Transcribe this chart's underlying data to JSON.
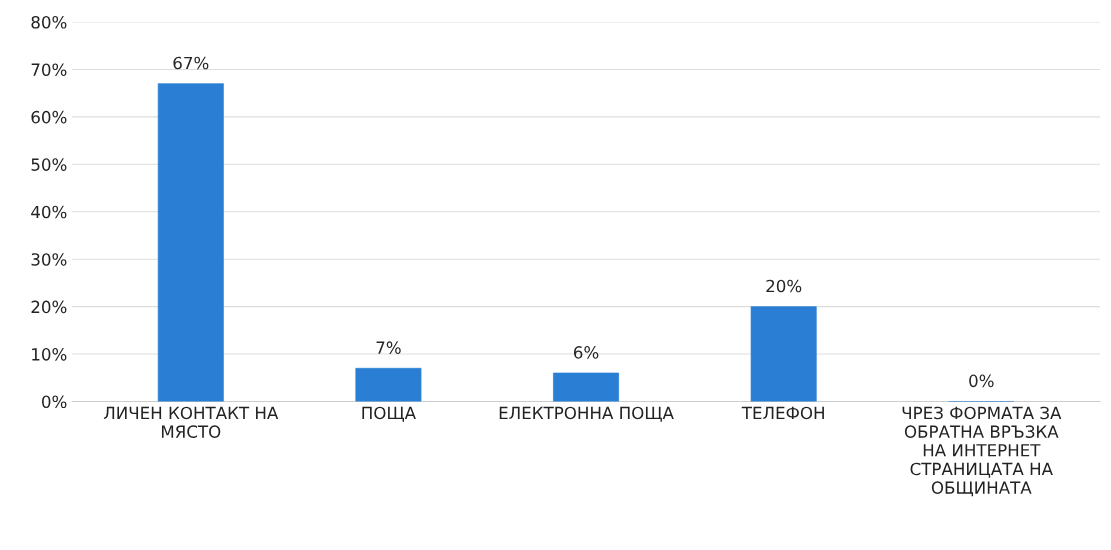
{
  "chart_data": {
    "type": "bar",
    "categories": [
      "ЛИЧЕН КОНТАКТ НА МЯСТО",
      "ПОЩА",
      "ЕЛЕКТРОННА ПОЩА",
      "ТЕЛЕФОН",
      "ЧРЕЗ ФОРМАТА ЗА ОБРАТНА ВРЪЗКА НА ИНТЕРНЕТ СТРАНИЦАТА НА ОБЩИНАТА"
    ],
    "values": [
      67,
      7,
      6,
      20,
      0
    ],
    "value_labels": [
      "67%",
      "7%",
      "6%",
      "20%",
      "0%"
    ],
    "color": "#2a7fd4",
    "ylim": [
      0,
      80
    ],
    "yticks": [
      {
        "value": 0,
        "label": "0%"
      },
      {
        "value": 10,
        "label": "10%"
      },
      {
        "value": 20,
        "label": "20%"
      },
      {
        "value": 30,
        "label": "30%"
      },
      {
        "value": 40,
        "label": "40%"
      },
      {
        "value": 50,
        "label": "50%"
      },
      {
        "value": 60,
        "label": "60%"
      },
      {
        "value": 70,
        "label": "70%"
      },
      {
        "value": 80,
        "label": "80%"
      }
    ],
    "grid": "y"
  }
}
